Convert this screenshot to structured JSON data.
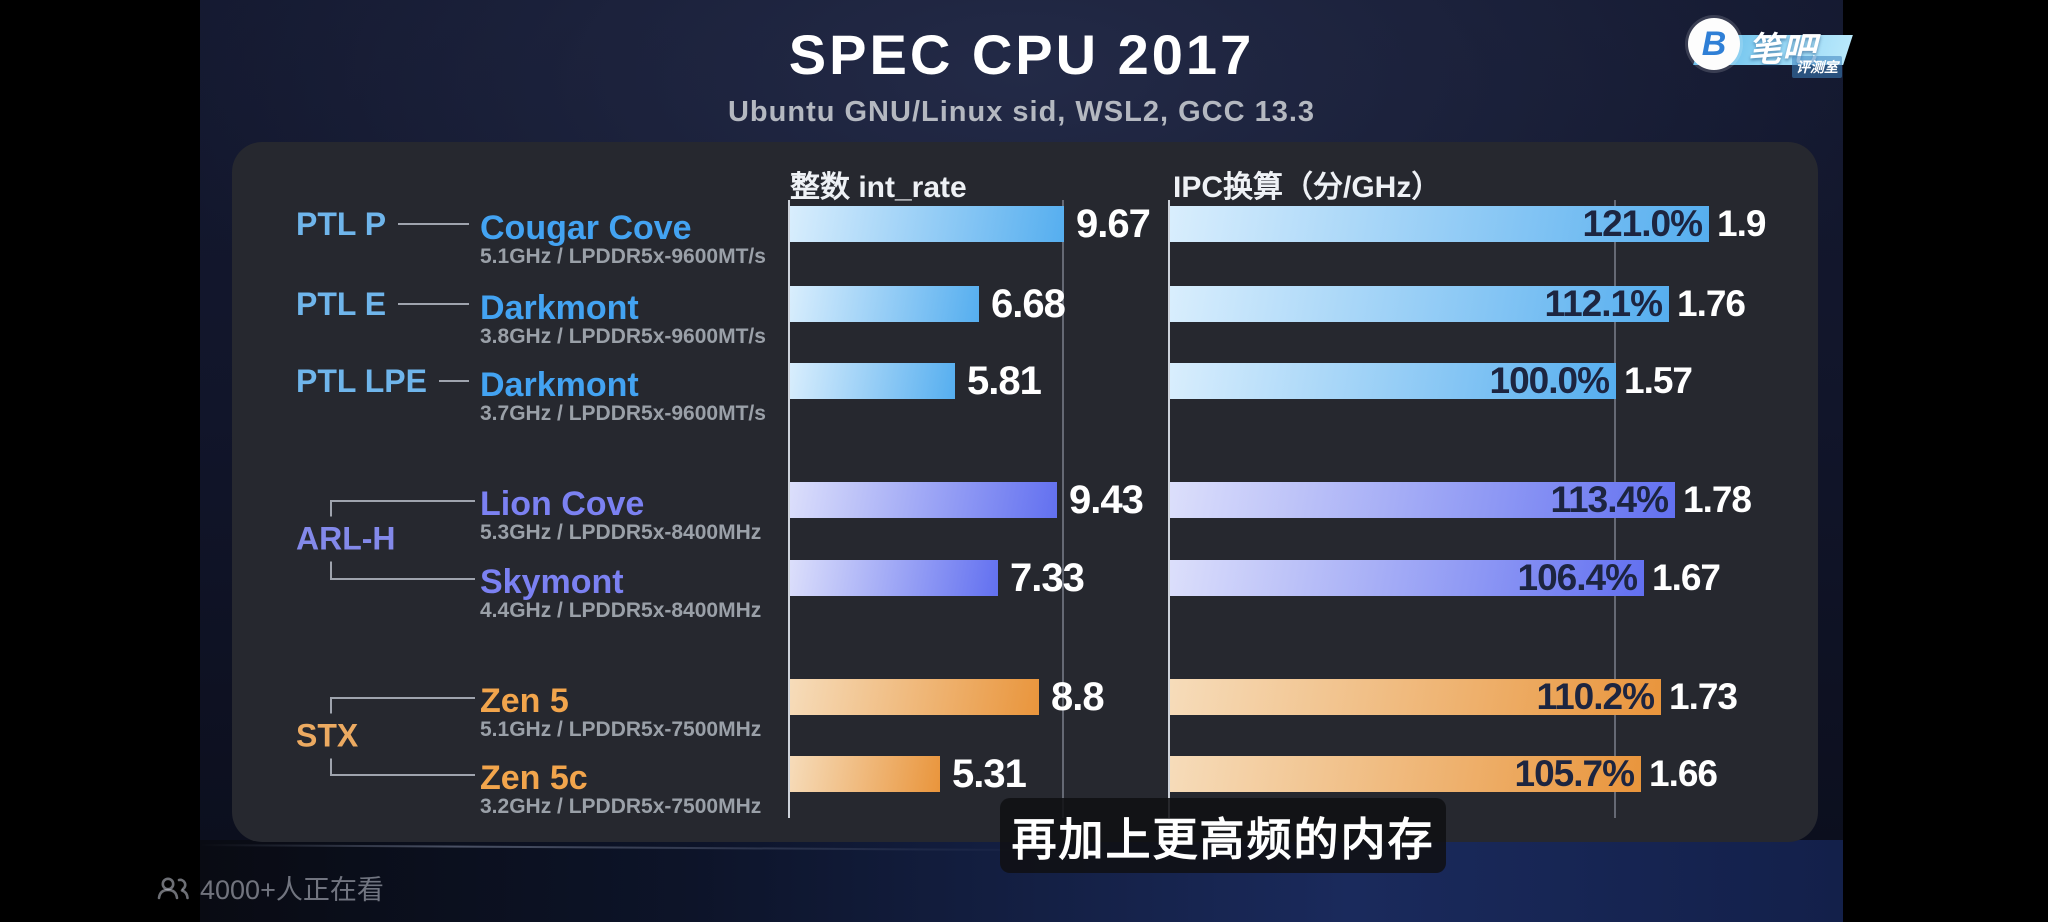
{
  "title": "SPEC CPU 2017",
  "subtitle": "Ubuntu GNU/Linux sid, WSL2, GCC 13.3",
  "logo": {
    "monogram": "B",
    "brand": "笔吧",
    "sub": "评测室"
  },
  "columns": {
    "int_rate": "整数 int_rate",
    "ipc": "IPC换算（分/GHz）"
  },
  "rows": [
    {
      "family": "PTL P",
      "core": "Cougar Cove",
      "spec": "5.1GHz / LPDDR5x-9600MT/s",
      "theme": "blue",
      "int_rate": "9.67",
      "int_rate_value": 9.67,
      "ipc_percent": "121.0%",
      "ipc_percent_value": 121.0,
      "ipc_score": "1.9"
    },
    {
      "family": "PTL E",
      "core": "Darkmont",
      "spec": "3.8GHz / LPDDR5x-9600MT/s",
      "theme": "blue",
      "int_rate": "6.68",
      "int_rate_value": 6.68,
      "ipc_percent": "112.1%",
      "ipc_percent_value": 112.1,
      "ipc_score": "1.76"
    },
    {
      "family": "PTL LPE",
      "core": "Darkmont",
      "spec": "3.7GHz / LPDDR5x-9600MT/s",
      "theme": "blue",
      "int_rate": "5.81",
      "int_rate_value": 5.81,
      "ipc_percent": "100.0%",
      "ipc_percent_value": 100.0,
      "ipc_score": "1.57"
    },
    {
      "family": null,
      "core": "Lion Cove",
      "spec": "5.3GHz / LPDDR5x-8400MHz",
      "theme": "violet",
      "int_rate": "9.43",
      "int_rate_value": 9.43,
      "ipc_percent": "113.4%",
      "ipc_percent_value": 113.4,
      "ipc_score": "1.78"
    },
    {
      "family": null,
      "core": "Skymont",
      "spec": "4.4GHz / LPDDR5x-8400MHz",
      "theme": "violet",
      "int_rate": "7.33",
      "int_rate_value": 7.33,
      "ipc_percent": "106.4%",
      "ipc_percent_value": 106.4,
      "ipc_score": "1.67"
    },
    {
      "family": null,
      "core": "Zen 5",
      "spec": "5.1GHz / LPDDR5x-7500MHz",
      "theme": "orange",
      "int_rate": "8.8",
      "int_rate_value": 8.8,
      "ipc_percent": "110.2%",
      "ipc_percent_value": 110.2,
      "ipc_score": "1.73"
    },
    {
      "family": null,
      "core": "Zen 5c",
      "spec": "3.2GHz / LPDDR5x-7500MHz",
      "theme": "orange",
      "int_rate": "5.31",
      "int_rate_value": 5.31,
      "ipc_percent": "105.7%",
      "ipc_percent_value": 105.7,
      "ipc_score": "1.66"
    }
  ],
  "brackets": [
    {
      "label": "ARL-H",
      "from": 3,
      "to": 4,
      "theme": "violet"
    },
    {
      "label": "STX",
      "from": 5,
      "to": 6,
      "theme": "orange"
    }
  ],
  "caption": "再加上更高频的内存",
  "viewers": "4000+人正在看",
  "colors": {
    "themes": {
      "blue": {
        "family": "#6fb5eb",
        "core": "#43a3f2",
        "barFrom": "#d9eefd",
        "barTo": "#55aeef"
      },
      "violet": {
        "family": "#8389ea",
        "core": "#7b81f2",
        "barFrom": "#dcdffb",
        "barTo": "#6270f0"
      },
      "orange": {
        "family": "#ecaa61",
        "core": "#f2a54c",
        "barFrom": "#f6dcba",
        "barTo": "#e9953c"
      }
    },
    "percent_text": "#1d2540",
    "value_text": "#ffffff",
    "spec_text": "#9aa0a8"
  },
  "chart_data": {
    "type": "bar",
    "orientation": "horizontal",
    "title": "SPEC CPU 2017",
    "subtitle": "Ubuntu GNU/Linux sid, WSL2, GCC 13.3",
    "categories": [
      "PTL P · Cougar Cove",
      "PTL E · Darkmont",
      "PTL LPE · Darkmont",
      "ARL-H · Lion Cove",
      "ARL-H · Skymont",
      "STX · Zen 5",
      "STX · Zen 5c"
    ],
    "category_specs": [
      "5.1GHz / LPDDR5x-9600MT/s",
      "3.8GHz / LPDDR5x-9600MT/s",
      "3.7GHz / LPDDR5x-9600MT/s",
      "5.3GHz / LPDDR5x-8400MHz",
      "4.4GHz / LPDDR5x-8400MHz",
      "5.1GHz / LPDDR5x-7500MHz",
      "3.2GHz / LPDDR5x-7500MHz"
    ],
    "series": [
      {
        "name": "整数 int_rate",
        "values": [
          9.67,
          6.68,
          5.81,
          9.43,
          7.33,
          8.8,
          5.31
        ],
        "reference_line": 9.67
      },
      {
        "name": "IPC换算（分/GHz）",
        "values": [
          1.9,
          1.76,
          1.57,
          1.78,
          1.67,
          1.73,
          1.66
        ],
        "percent_labels": [
          "121.0%",
          "112.1%",
          "100.0%",
          "113.4%",
          "106.4%",
          "110.2%",
          "105.7%"
        ],
        "baseline": "PTL LPE Darkmont = 100.0%",
        "reference_line_percent": 100.0
      }
    ],
    "legend_position": "none",
    "grid": "reference-lines-only"
  }
}
